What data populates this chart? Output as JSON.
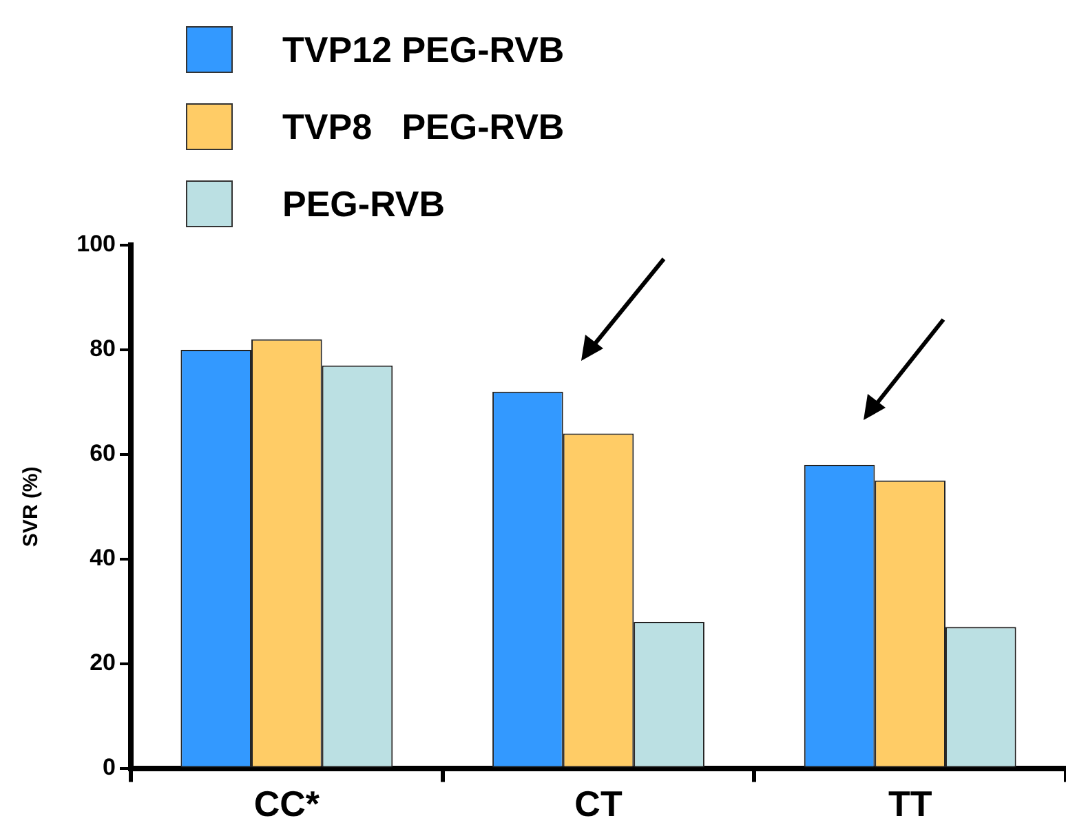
{
  "chart_data": {
    "type": "bar",
    "ylabel": "SVR (%)",
    "categories": [
      "CC*",
      "CT",
      "TT"
    ],
    "series": [
      {
        "name": "TVP12 PEG-RVB",
        "color": "#3399ff",
        "values": [
          80,
          72,
          58
        ]
      },
      {
        "name": "TVP8   PEG-RVB",
        "color": "#ffcc66",
        "values": [
          82,
          64,
          55
        ]
      },
      {
        "name": "PEG-RVB",
        "color": "#bbe0e3",
        "values": [
          77,
          28,
          27
        ]
      }
    ],
    "ylim": [
      0,
      100
    ],
    "yticks": [
      0,
      20,
      40,
      60,
      80,
      100
    ],
    "grid": false,
    "legend": "top left"
  }
}
